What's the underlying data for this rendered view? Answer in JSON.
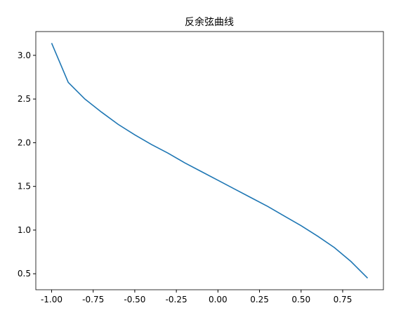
{
  "chart_data": {
    "type": "line",
    "title": "反余弦曲线",
    "x": [
      -1.0,
      -0.9,
      -0.8,
      -0.7,
      -0.6,
      -0.5,
      -0.4,
      -0.3,
      -0.2,
      -0.1,
      0.0,
      0.1,
      0.2,
      0.3,
      0.4,
      0.5,
      0.6,
      0.7,
      0.8,
      0.9
    ],
    "series": [
      {
        "color": "#1f77b4",
        "values": [
          3.14,
          2.69,
          2.5,
          2.35,
          2.21,
          2.09,
          1.98,
          1.88,
          1.77,
          1.67,
          1.57,
          1.47,
          1.37,
          1.27,
          1.16,
          1.05,
          0.93,
          0.8,
          0.64,
          0.45
        ]
      }
    ],
    "xlim": [
      -1.095,
      0.995
    ],
    "ylim": [
      0.317,
      3.272
    ],
    "xticks": [
      {
        "value": -1,
        "label": "-1.00"
      },
      {
        "value": -0.75,
        "label": "-0.75"
      },
      {
        "value": -0.5,
        "label": "-0.50"
      },
      -0.25,
      {
        "value": 0,
        "label": "0.00"
      },
      0.25,
      {
        "value": 0.5,
        "label": "0.50"
      },
      0.75
    ],
    "yticks": [
      0.5,
      {
        "value": 1,
        "label": "1.0"
      },
      1.5,
      {
        "value": 2,
        "label": "2.0"
      },
      2.5,
      {
        "value": 3,
        "label": "3.0"
      }
    ],
    "grid": false
  }
}
